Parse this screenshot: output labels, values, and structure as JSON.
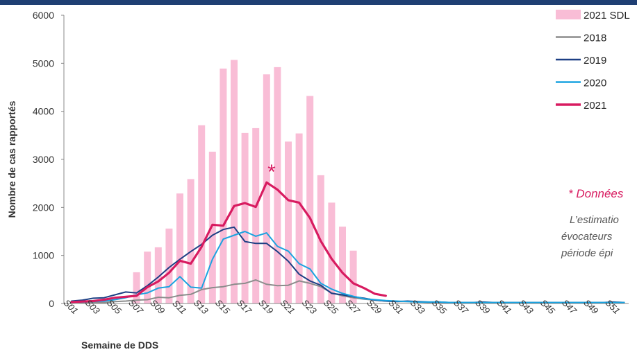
{
  "chart_data": {
    "type": "bar",
    "title": "",
    "xlabel": "Semaine de DDS",
    "ylabel": "Nombre de cas rapportés",
    "ylim": [
      0,
      6000
    ],
    "yticks": [
      0,
      1000,
      2000,
      3000,
      4000,
      5000,
      6000
    ],
    "grid": false,
    "legend_position": "top-right",
    "weeks": [
      "S01",
      "S02",
      "S03",
      "S04",
      "S05",
      "S06",
      "S07",
      "S08",
      "S09",
      "S10",
      "S11",
      "S12",
      "S13",
      "S14",
      "S15",
      "S16",
      "S17",
      "S18",
      "S19",
      "S20",
      "S21",
      "S22",
      "S23",
      "S24",
      "S25",
      "S26",
      "S27",
      "S28",
      "S29",
      "S30",
      "S31",
      "S32",
      "S33",
      "S34",
      "S35",
      "S36",
      "S37",
      "S38",
      "S39",
      "S40",
      "S41",
      "S42",
      "S43",
      "S44",
      "S45",
      "S46",
      "S47",
      "S48",
      "S49",
      "S50",
      "S51",
      "S52"
    ],
    "xtick_labels": [
      "S01",
      "S03",
      "S05",
      "S07",
      "S09",
      "S11",
      "S13",
      "S15",
      "S17",
      "S19",
      "S21",
      "S23",
      "S25",
      "S27",
      "S29",
      "S31",
      "S33",
      "S35",
      "S37",
      "S39",
      "S41",
      "S43",
      "S45",
      "S47",
      "S49",
      "S51"
    ],
    "bars": {
      "name": "2021 SDL",
      "color": "#f9bdd6",
      "start_week": "S07",
      "values": [
        650,
        1080,
        1170,
        1560,
        2290,
        2590,
        3710,
        3160,
        4890,
        5070,
        3550,
        3650,
        4770,
        4920,
        3370,
        3540,
        4320,
        2670,
        2100,
        1600,
        1100
      ]
    },
    "series": [
      {
        "name": "2018",
        "color": "#8c8c8c",
        "values": [
          30,
          20,
          20,
          20,
          40,
          50,
          70,
          80,
          130,
          120,
          170,
          190,
          290,
          330,
          350,
          400,
          420,
          490,
          400,
          370,
          380,
          470,
          420,
          350,
          220,
          160,
          120,
          90,
          70,
          50,
          40,
          40,
          30,
          20,
          20,
          20,
          20,
          20,
          20,
          20,
          20,
          20,
          20,
          20,
          20,
          20,
          20,
          20,
          20,
          20,
          20,
          20
        ]
      },
      {
        "name": "2019",
        "color": "#1d3f84",
        "values": [
          50,
          70,
          110,
          120,
          180,
          240,
          220,
          370,
          550,
          750,
          920,
          1080,
          1230,
          1420,
          1540,
          1590,
          1290,
          1250,
          1250,
          1080,
          880,
          610,
          470,
          380,
          210,
          180,
          140,
          110,
          70,
          50,
          40,
          50,
          40,
          30,
          30,
          20,
          20,
          20,
          30,
          20,
          20,
          20,
          20,
          20,
          20,
          20,
          20,
          20,
          20,
          20,
          30,
          20
        ]
      },
      {
        "name": "2020",
        "color": "#1aa3e0",
        "values": [
          30,
          30,
          40,
          50,
          80,
          120,
          180,
          220,
          320,
          350,
          560,
          340,
          320,
          920,
          1340,
          1420,
          1500,
          1400,
          1470,
          1190,
          1090,
          830,
          720,
          420,
          300,
          210,
          150,
          100,
          80,
          60,
          50,
          40,
          30,
          30,
          30,
          20,
          20,
          20,
          20,
          20,
          20,
          20,
          20,
          20,
          20,
          20,
          20,
          20,
          20,
          20,
          20,
          20
        ]
      },
      {
        "name": "2021",
        "color": "#d81b60",
        "values": [
          30,
          40,
          50,
          80,
          120,
          140,
          160,
          340,
          460,
          640,
          890,
          830,
          1180,
          1640,
          1620,
          2030,
          2090,
          2010,
          2520,
          2370,
          2150,
          2100,
          1780,
          1300,
          930,
          640,
          420,
          320,
          200,
          160
        ]
      }
    ],
    "annotation_marker": "*",
    "annotations": [
      "* Données",
      "L’estimatio",
      "évocateurs",
      "période épi"
    ]
  }
}
